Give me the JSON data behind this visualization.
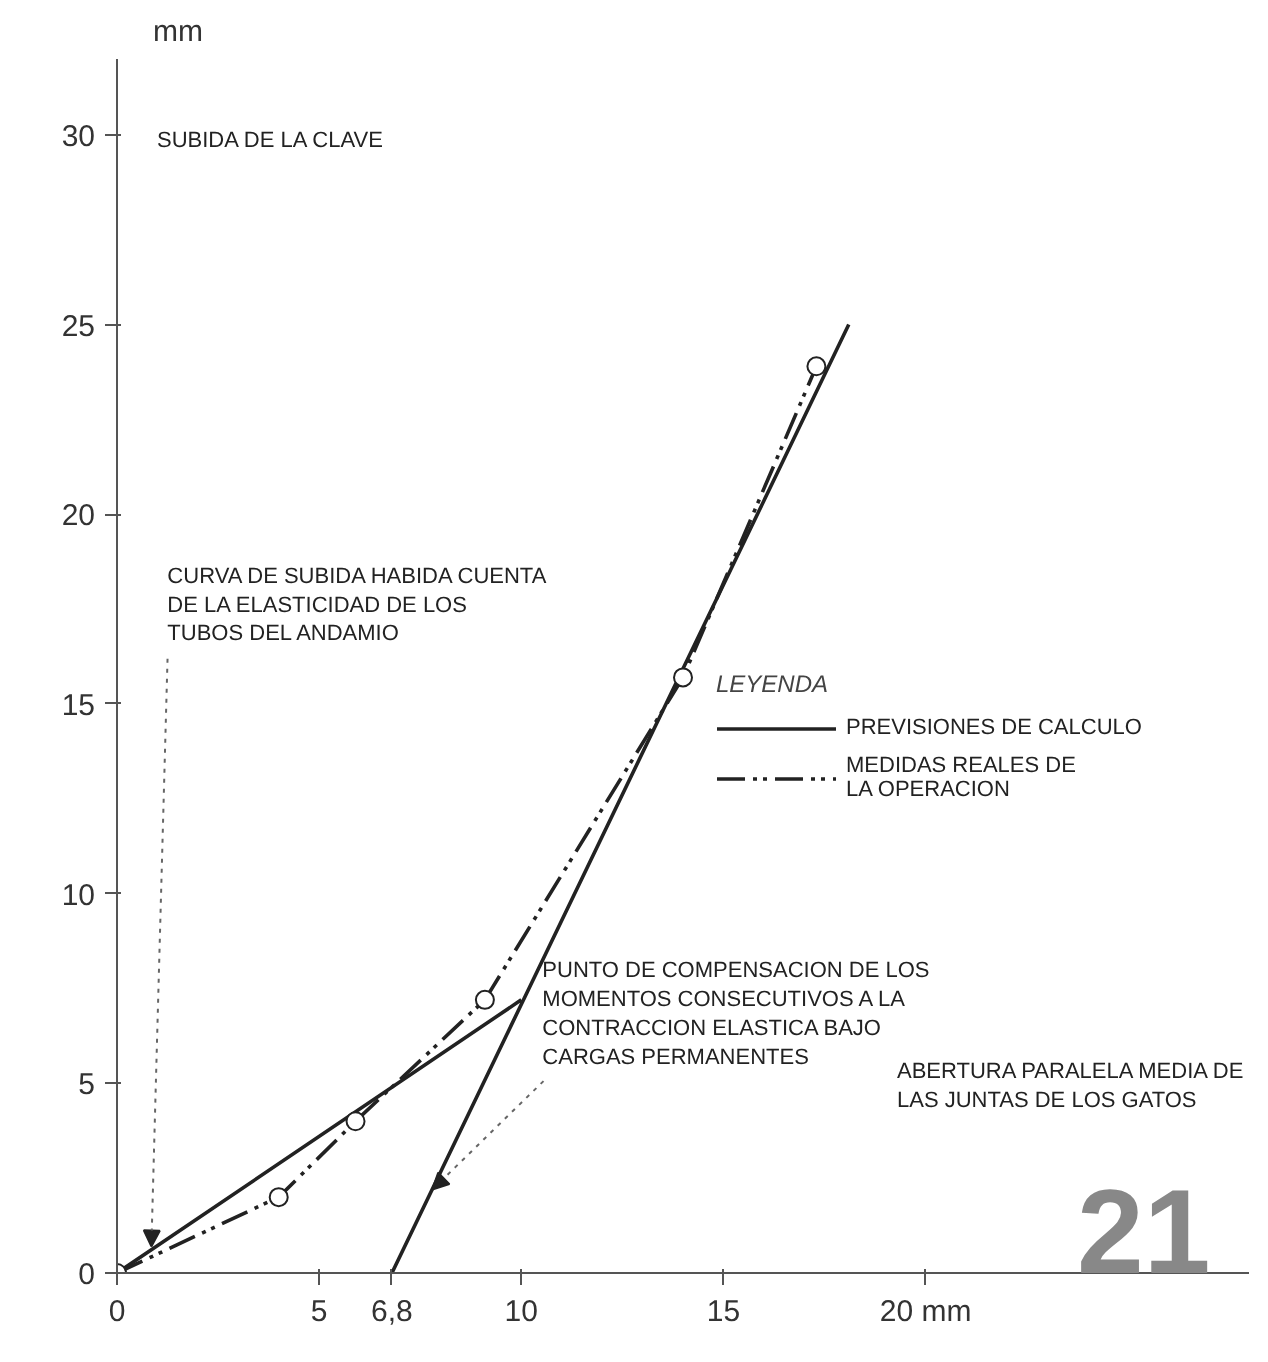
{
  "chart_data": {
    "type": "line",
    "ylabel": "SUBIDA DE LA CLAVE",
    "xlabel": "ABERTURA PARALELA MEDIA DE LAS JUNTAS DE LOS GATOS",
    "legend_title": "LEYENDA",
    "xlim": [
      0,
      28
    ],
    "ylim": [
      0,
      32
    ],
    "xticks": [
      0,
      5,
      {
        "value": 6.8,
        "label": "6,8"
      },
      10,
      15,
      {
        "value": 20,
        "label": "20 mm"
      }
    ],
    "yticks": [
      0,
      5,
      10,
      15,
      20,
      25,
      30
    ],
    "series": [
      {
        "name": "PREVISIONES DE CALCULO",
        "color": "#222222",
        "x": [
          0,
          10,
          null,
          6.8,
          18.1
        ],
        "values": [
          0,
          7.2,
          null,
          0,
          25
        ],
        "line_style": "solid"
      },
      {
        "name": "MEDIDAS REALES DE\nLA OPERACION",
        "color": "#222222",
        "x": [
          0,
          4,
          5.9,
          9.1,
          14,
          17.3
        ],
        "values": [
          0,
          2,
          4,
          7.2,
          15.7,
          23.9
        ],
        "line_style": "dashdot",
        "marker": "circle"
      }
    ],
    "annotations": [
      "mm",
      {
        "text": "CURVA DE SUBIDA HABIDA CUENTA\nDE LA ELASTICIDAD DE LOS\nTUBOS DEL ANDAMIO",
        "x": 0.85,
        "y": 0.7
      },
      {
        "text": "PUNTO DE COMPENSACION DE LOS\nMOMENTOS CONSECUTIVOS A LA\nCONTRACCION ELASTICA BAJO\nCARGAS PERMANENTES",
        "x": 7.8,
        "y": 2.2
      },
      "21"
    ],
    "grid": false,
    "legend": "right"
  }
}
